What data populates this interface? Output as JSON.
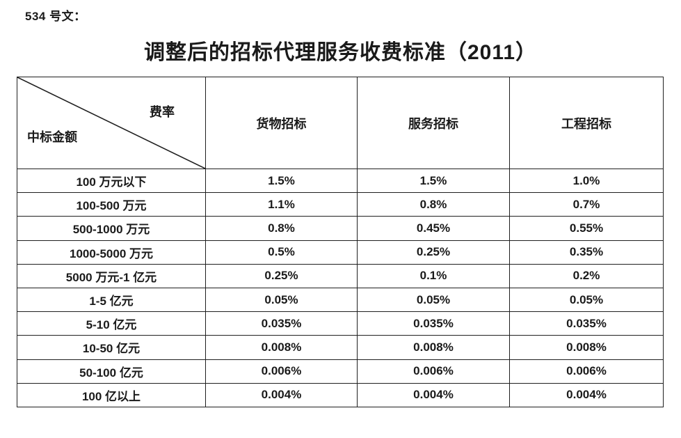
{
  "page": {
    "doc_label": "534 号文：",
    "title": "调整后的招标代理服务收费标准（2011）"
  },
  "table": {
    "corner": {
      "top_right": "费率",
      "bottom_left": "中标金额"
    },
    "columns": [
      "货物招标",
      "服务招标",
      "工程招标"
    ],
    "rows": [
      {
        "label": "100 万元以下",
        "values": [
          "1.5%",
          "1.5%",
          "1.0%"
        ]
      },
      {
        "label": "100-500 万元",
        "values": [
          "1.1%",
          "0.8%",
          "0.7%"
        ]
      },
      {
        "label": "500-1000 万元",
        "values": [
          "0.8%",
          "0.45%",
          "0.55%"
        ]
      },
      {
        "label": "1000-5000 万元",
        "values": [
          "0.5%",
          "0.25%",
          "0.35%"
        ]
      },
      {
        "label": "5000 万元-1 亿元",
        "values": [
          "0.25%",
          "0.1%",
          "0.2%"
        ]
      },
      {
        "label": "1-5 亿元",
        "values": [
          "0.05%",
          "0.05%",
          "0.05%"
        ]
      },
      {
        "label": "5-10 亿元",
        "values": [
          "0.035%",
          "0.035%",
          "0.035%"
        ]
      },
      {
        "label": "10-50 亿元",
        "values": [
          "0.008%",
          "0.008%",
          "0.008%"
        ]
      },
      {
        "label": "50-100 亿元",
        "values": [
          "0.006%",
          "0.006%",
          "0.006%"
        ]
      },
      {
        "label": "100 亿以上",
        "values": [
          "0.004%",
          "0.004%",
          "0.004%"
        ]
      }
    ]
  },
  "colors": {
    "text": "#1a1a1a",
    "border": "#1f1f1f",
    "background": "#ffffff"
  }
}
